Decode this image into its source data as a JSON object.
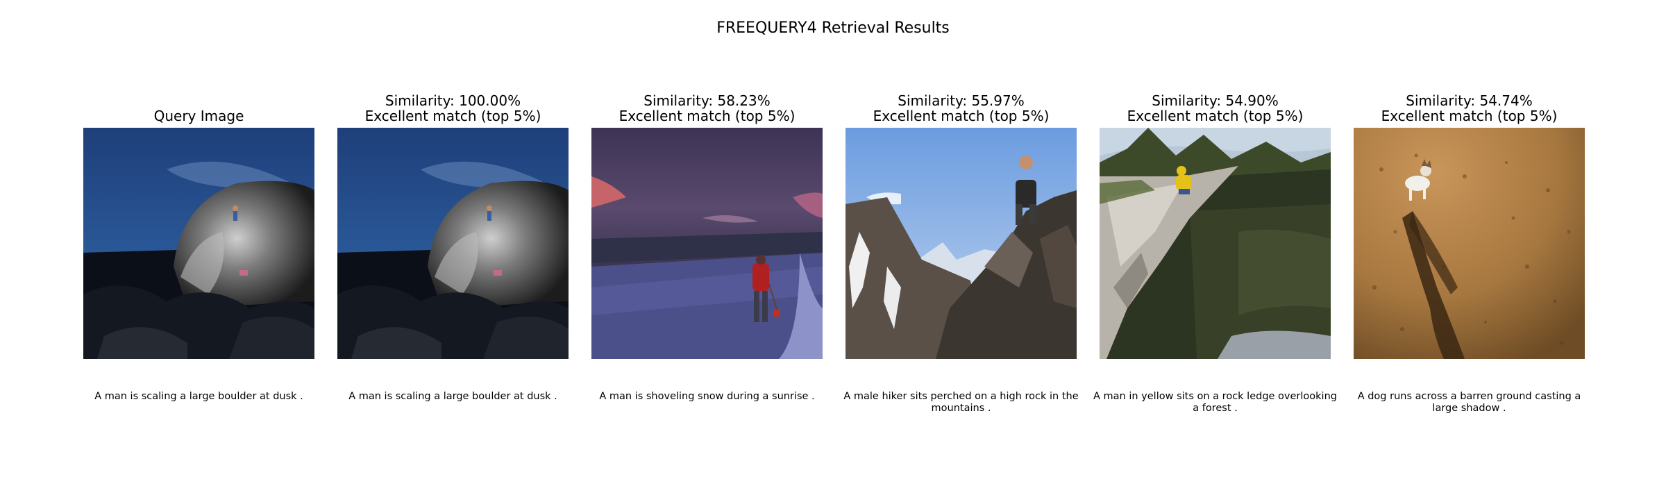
{
  "figure": {
    "title": "FREEQUERY4 Retrieval Results"
  },
  "panels": [
    {
      "title_line1": "",
      "title_line2": "Query Image",
      "caption": "A man is scaling a large boulder at dusk ."
    },
    {
      "title_line1": "Similarity: 100.00%",
      "title_line2": "Excellent match (top 5%)",
      "caption": "A man is scaling a large boulder at dusk ."
    },
    {
      "title_line1": "Similarity: 58.23%",
      "title_line2": "Excellent match (top 5%)",
      "caption": "A man is shoveling snow during a sunrise ."
    },
    {
      "title_line1": "Similarity: 55.97%",
      "title_line2": "Excellent match (top 5%)",
      "caption": "A male hiker sits perched on a high rock in the mountains ."
    },
    {
      "title_line1": "Similarity: 54.90%",
      "title_line2": "Excellent match (top 5%)",
      "caption": "A man in yellow sits on a rock ledge overlooking a forest ."
    },
    {
      "title_line1": "Similarity: 54.74%",
      "title_line2": "Excellent match (top 5%)",
      "caption": "A dog runs across a barren ground casting a large shadow ."
    }
  ]
}
